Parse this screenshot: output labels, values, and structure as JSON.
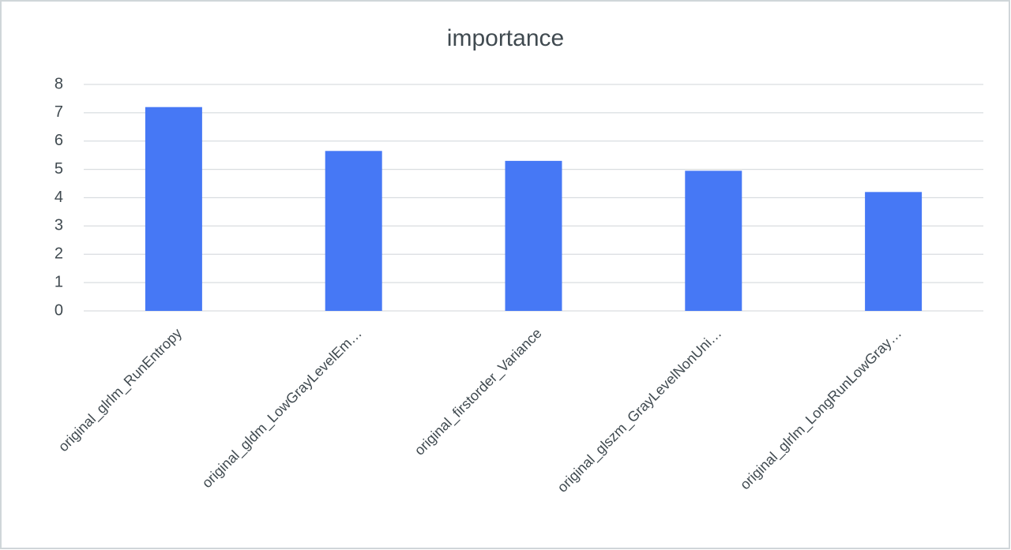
{
  "chart_data": {
    "type": "bar",
    "title": "importance",
    "categories": [
      "original_glrlm_RunEntropy",
      "original_gldm_LowGrayLevelEm…",
      "original_firstorder_Variance",
      "original_glszm_GrayLevelNonUni…",
      "original_glrlm_LongRunLowGray…"
    ],
    "values": [
      7.2,
      5.65,
      5.3,
      4.95,
      4.2
    ],
    "color": "#4678f5",
    "ylim": [
      0,
      8
    ],
    "yticks": [
      0,
      1,
      2,
      3,
      4,
      5,
      6,
      7,
      8
    ],
    "grid": true
  }
}
